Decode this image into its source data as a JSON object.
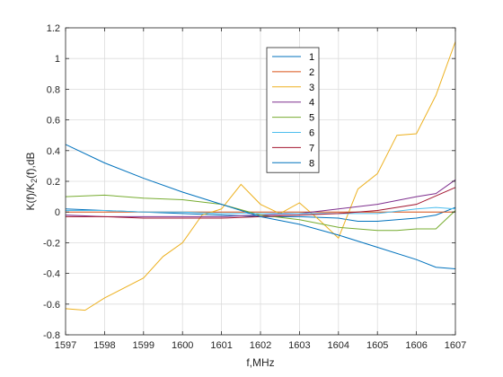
{
  "chart_data": {
    "type": "line",
    "title": "",
    "xlabel": "f,MHz",
    "ylabel_main": "K(f)/K",
    "ylabel_sub": "2",
    "ylabel_tail": "(f),dB",
    "xlim": [
      1597,
      1607
    ],
    "ylim": [
      -0.8,
      1.2
    ],
    "xticks": [
      1597,
      1598,
      1599,
      1600,
      1601,
      1602,
      1603,
      1604,
      1605,
      1606,
      1607
    ],
    "xtick_labels": [
      "1597",
      "1598",
      "1599",
      "1600",
      "1601",
      "1602",
      "1603",
      "1604",
      "1605",
      "1606",
      "1607"
    ],
    "yticks": [
      -0.8,
      -0.6,
      -0.4,
      -0.2,
      0,
      0.2,
      0.4,
      0.6,
      0.8,
      1,
      1.2
    ],
    "ytick_labels": [
      "-0.8",
      "-0.6",
      "-0.4",
      "-0.2",
      "0",
      "0.2",
      "0.4",
      "0.6",
      "0.8",
      "1",
      "1.2"
    ],
    "grid": true,
    "legend_position": "top-center",
    "series": [
      {
        "name": "1",
        "color": "#0072BD",
        "x": [
          1597,
          1598,
          1599,
          1600,
          1601,
          1602,
          1603,
          1604,
          1604.5,
          1605,
          1605.5,
          1606,
          1606.5,
          1607
        ],
        "y": [
          0.02,
          0.01,
          0.0,
          -0.01,
          -0.02,
          -0.03,
          -0.03,
          -0.04,
          -0.06,
          -0.06,
          -0.05,
          -0.04,
          -0.02,
          0.03
        ]
      },
      {
        "name": "2",
        "color": "#D95319",
        "x": [
          1597,
          1598,
          1599,
          1600,
          1601,
          1602,
          1603,
          1604,
          1605,
          1606,
          1607
        ],
        "y": [
          0.0,
          0.0,
          0.0,
          0.0,
          0.0,
          0.0,
          0.0,
          0.0,
          0.0,
          0.0,
          0.0
        ]
      },
      {
        "name": "3",
        "color": "#EDB120",
        "x": [
          1597,
          1597.5,
          1598,
          1599,
          1599.5,
          1600,
          1600.5,
          1601,
          1601.5,
          1602,
          1602.5,
          1603,
          1603.5,
          1604,
          1604.5,
          1605,
          1605.5,
          1606,
          1606.5,
          1607
        ],
        "y": [
          -0.63,
          -0.64,
          -0.56,
          -0.43,
          -0.29,
          -0.2,
          -0.02,
          0.02,
          0.18,
          0.05,
          -0.01,
          0.06,
          -0.05,
          -0.17,
          0.15,
          0.25,
          0.5,
          0.51,
          0.76,
          1.11
        ]
      },
      {
        "name": "4",
        "color": "#7E2F8E",
        "x": [
          1597,
          1598,
          1599,
          1600,
          1601,
          1602,
          1603,
          1604,
          1605,
          1606,
          1606.5,
          1607
        ],
        "y": [
          -0.02,
          -0.03,
          -0.03,
          -0.03,
          -0.03,
          -0.02,
          -0.01,
          0.02,
          0.05,
          0.1,
          0.12,
          0.21
        ]
      },
      {
        "name": "5",
        "color": "#77AC30",
        "x": [
          1597,
          1598,
          1599,
          1600,
          1601,
          1602,
          1603,
          1604,
          1605,
          1605.5,
          1606,
          1606.5,
          1607
        ],
        "y": [
          0.1,
          0.11,
          0.09,
          0.08,
          0.05,
          -0.02,
          -0.05,
          -0.1,
          -0.12,
          -0.12,
          -0.11,
          -0.11,
          0.01
        ]
      },
      {
        "name": "6",
        "color": "#4DBEEE",
        "x": [
          1597,
          1598,
          1599,
          1600,
          1601,
          1602,
          1603,
          1604,
          1605,
          1606,
          1606.5,
          1607
        ],
        "y": [
          0.01,
          0.01,
          0.0,
          0.0,
          -0.01,
          -0.01,
          -0.01,
          -0.01,
          -0.01,
          0.02,
          0.03,
          0.02
        ]
      },
      {
        "name": "7",
        "color": "#A2142F",
        "x": [
          1597,
          1598,
          1599,
          1600,
          1601,
          1602,
          1603,
          1604,
          1605,
          1606,
          1607
        ],
        "y": [
          -0.03,
          -0.03,
          -0.04,
          -0.04,
          -0.04,
          -0.03,
          -0.02,
          -0.01,
          0.01,
          0.05,
          0.16
        ]
      },
      {
        "name": "8",
        "color": "#0072BD",
        "x": [
          1597,
          1598,
          1599,
          1600,
          1601,
          1602,
          1603,
          1604,
          1605,
          1606,
          1606.5,
          1607
        ],
        "y": [
          0.44,
          0.32,
          0.22,
          0.13,
          0.05,
          -0.03,
          -0.08,
          -0.15,
          -0.23,
          -0.31,
          -0.36,
          -0.37
        ]
      }
    ]
  }
}
